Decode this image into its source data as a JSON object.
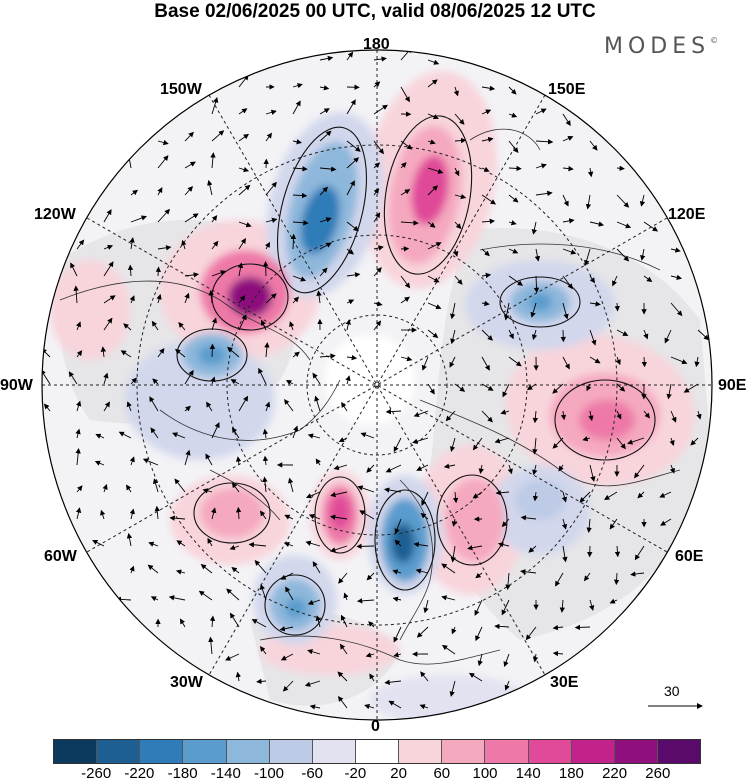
{
  "header": {
    "title": "Base 02/06/2025 00 UTC, valid 08/06/2025 12 UTC",
    "logo": "MODES",
    "logo_mark": "©"
  },
  "map": {
    "longitude_labels": {
      "top": "180",
      "bottom": "0",
      "left": "90W",
      "right": "90E",
      "upper_left_1": "150W",
      "upper_left_2": "120W",
      "lower_left_1": "60W",
      "lower_left_2": "30W",
      "upper_right_1": "150E",
      "upper_right_2": "120E",
      "lower_right_1": "60E",
      "lower_right_2": "30E"
    },
    "reference_vector": "30"
  },
  "colorbar": {
    "colors": [
      "#0b3a5e",
      "#1e5f93",
      "#2f7cb8",
      "#5a9ccd",
      "#8db7db",
      "#bdcbe6",
      "#e2e2f1",
      "#ffffff",
      "#f8d4db",
      "#f5a9bf",
      "#ee79a8",
      "#e04a98",
      "#c2238a",
      "#8e0f7d",
      "#5a0a6b"
    ],
    "ticks": [
      "-260",
      "-220",
      "-180",
      "-140",
      "-100",
      "-60",
      "-20",
      "20",
      "60",
      "100",
      "140",
      "180",
      "220",
      "260"
    ]
  }
}
